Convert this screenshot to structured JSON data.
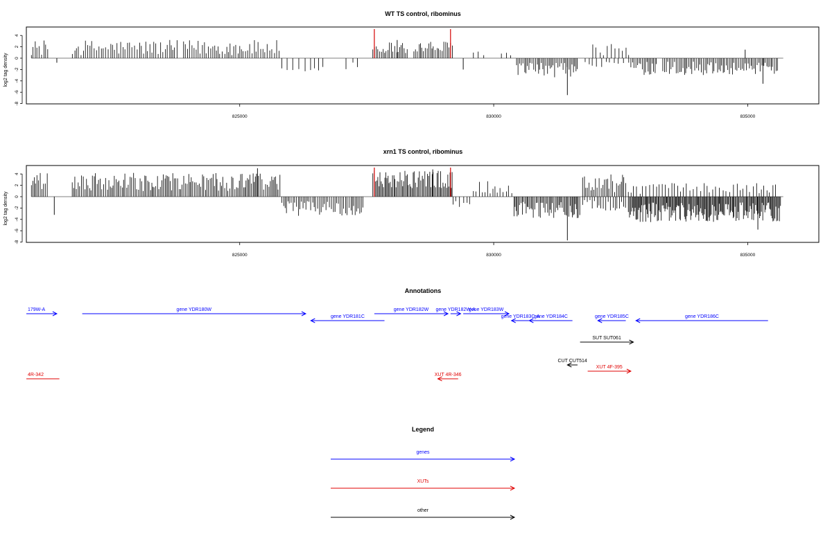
{
  "chart_data": [
    {
      "type": "bar",
      "title": "WT TS control, ribominus",
      "xlabel": "",
      "ylabel": "log2 tag density",
      "ylim": [
        -8,
        6
      ],
      "yticks": [
        "4",
        "2",
        "0",
        "-2",
        "-4",
        "-6",
        "-8"
      ],
      "xlim": [
        820800,
        836400
      ],
      "xticks": [
        "825000",
        "830000",
        "835000"
      ],
      "marker_color": "#d40000",
      "markers_x": [
        827650,
        829150
      ],
      "segments": [
        {
          "x0": 820900,
          "x1": 825800,
          "sign": 1,
          "minv": 0.5,
          "maxv": 3.2,
          "step": 42,
          "gaps": [
            [
              821250,
              821700
            ],
            [
              823800,
              823880
            ]
          ]
        },
        {
          "x0": 825830,
          "x1": 827400,
          "sign": -1,
          "minv": 0.5,
          "maxv": 2.4,
          "step": 110,
          "gaps": [
            [
              826700,
              827000
            ]
          ]
        },
        {
          "x0": 827620,
          "x1": 829200,
          "sign": 1,
          "minv": 0.8,
          "maxv": 3.0,
          "step": 32,
          "gaps": [
            [
              828300,
              828420
            ]
          ]
        },
        {
          "x0": 829600,
          "x1": 830400,
          "sign": 1,
          "minv": 0.5,
          "maxv": 1.5,
          "step": 90,
          "gaps": [
            [
              829850,
              830100
            ]
          ]
        },
        {
          "x0": 830450,
          "x1": 831650,
          "sign": -1,
          "minv": 0.8,
          "maxv": 3.5,
          "step": 28,
          "gaps": []
        },
        {
          "x0": 831950,
          "x1": 832700,
          "sign": 1,
          "minv": 0.4,
          "maxv": 2.5,
          "step": 70,
          "gaps": []
        },
        {
          "x0": 831800,
          "x1": 832700,
          "sign": -1,
          "minv": 0.5,
          "maxv": 1.8,
          "step": 80,
          "gaps": []
        },
        {
          "x0": 832700,
          "x1": 835600,
          "sign": -1,
          "minv": 0.6,
          "maxv": 3.0,
          "step": 30,
          "gaps": [
            [
              833200,
              833320
            ]
          ]
        }
      ],
      "spikes": [
        {
          "x": 821400,
          "v": -0.8
        },
        {
          "x": 829400,
          "v": -2.0
        },
        {
          "x": 831450,
          "v": -6.5
        },
        {
          "x": 835300,
          "v": -4.5
        },
        {
          "x": 834950,
          "v": 1.5
        },
        {
          "x": 828100,
          "v": 3.2
        }
      ]
    },
    {
      "type": "bar",
      "title": "xrn1 TS control, ribominus",
      "xlabel": "",
      "ylabel": "log2 tag density",
      "ylim": [
        -8,
        6
      ],
      "yticks": [
        "4",
        "2",
        "0",
        "-2",
        "-4",
        "-6",
        "-8"
      ],
      "xlim": [
        820800,
        836400
      ],
      "xticks": [
        "825000",
        "830000",
        "835000"
      ],
      "marker_color": "#d40000",
      "markers_x": [
        827650,
        829150
      ],
      "segments": [
        {
          "x0": 820900,
          "x1": 825800,
          "sign": 1,
          "minv": 1.0,
          "maxv": 4.2,
          "step": 30,
          "gaps": [
            [
              821250,
              821700
            ]
          ]
        },
        {
          "x0": 825830,
          "x1": 827450,
          "sign": -1,
          "minv": 0.8,
          "maxv": 3.6,
          "step": 34,
          "gaps": []
        },
        {
          "x0": 827620,
          "x1": 829200,
          "sign": 1,
          "minv": 1.5,
          "maxv": 4.6,
          "step": 24,
          "gaps": []
        },
        {
          "x0": 829200,
          "x1": 829600,
          "sign": -1,
          "minv": 0.5,
          "maxv": 1.8,
          "step": 70,
          "gaps": []
        },
        {
          "x0": 829600,
          "x1": 830400,
          "sign": 1,
          "minv": 0.5,
          "maxv": 3.0,
          "step": 55,
          "gaps": []
        },
        {
          "x0": 830400,
          "x1": 831700,
          "sign": -1,
          "minv": 0.8,
          "maxv": 3.8,
          "step": 24,
          "gaps": []
        },
        {
          "x0": 831750,
          "x1": 832600,
          "sign": 1,
          "minv": 0.8,
          "maxv": 4.0,
          "step": 32,
          "gaps": []
        },
        {
          "x0": 831750,
          "x1": 832600,
          "sign": -1,
          "minv": 0.6,
          "maxv": 2.5,
          "step": 45,
          "gaps": []
        },
        {
          "x0": 832650,
          "x1": 835650,
          "sign": -1,
          "minv": 1.0,
          "maxv": 4.5,
          "step": 18,
          "gaps": []
        },
        {
          "x0": 832650,
          "x1": 835600,
          "sign": 1,
          "minv": 0.5,
          "maxv": 2.4,
          "step": 60,
          "gaps": []
        }
      ],
      "spikes": [
        {
          "x": 821350,
          "v": -3.2
        },
        {
          "x": 825350,
          "v": 5.0
        },
        {
          "x": 831450,
          "v": -7.7
        },
        {
          "x": 835200,
          "v": -5.8
        },
        {
          "x": 828800,
          "v": 4.8
        }
      ]
    }
  ],
  "annotations": {
    "title": "Annotations",
    "xlim": [
      820800,
      836400
    ],
    "features": [
      {
        "label": "179W-A",
        "x0": 820800,
        "x1": 821400,
        "dir": "right",
        "row": 0,
        "color": "#0000ff"
      },
      {
        "label": "gene YDR180W",
        "x0": 821900,
        "x1": 826300,
        "dir": "right",
        "row": 0,
        "color": "#0000ff"
      },
      {
        "label": "gene YDR181C",
        "x0": 826400,
        "x1": 827850,
        "dir": "left",
        "row": 1,
        "color": "#0000ff"
      },
      {
        "label": "gene YDR182W",
        "x0": 827650,
        "x1": 829100,
        "dir": "right",
        "row": 0,
        "color": "#0000ff"
      },
      {
        "label": "gene YDR182W-A",
        "x0": 829150,
        "x1": 829350,
        "dir": "right",
        "row": 0,
        "color": "#0000ff"
      },
      {
        "label": "gene YDR183W",
        "x0": 829400,
        "x1": 830300,
        "dir": "right",
        "row": 0,
        "color": "#0000ff"
      },
      {
        "label": "gene YDR183C-A",
        "x0": 830350,
        "x1": 830700,
        "dir": "left",
        "row": 1,
        "color": "#0000ff"
      },
      {
        "label": "gene YDR184C",
        "x0": 830700,
        "x1": 831550,
        "dir": "left",
        "row": 1,
        "color": "#0000ff"
      },
      {
        "label": "gene YDR185C",
        "x0": 832050,
        "x1": 832600,
        "dir": "left",
        "row": 1,
        "color": "#0000ff"
      },
      {
        "label": "gene YDR186C",
        "x0": 832800,
        "x1": 835400,
        "dir": "left",
        "row": 1,
        "color": "#0000ff"
      },
      {
        "label": "SUT SUT061",
        "x0": 831700,
        "x1": 832750,
        "dir": "right",
        "row": 2,
        "color": "#000000"
      },
      {
        "label": "CUT CUT514",
        "x0": 831450,
        "x1": 831650,
        "dir": "left",
        "row": 3,
        "color": "#000000"
      },
      {
        "label": "XUT 4F-395",
        "x0": 831850,
        "x1": 832700,
        "dir": "right",
        "row": 4,
        "color": "#e00000"
      },
      {
        "label": "4R-342",
        "x0": 820800,
        "x1": 821450,
        "dir": "none",
        "row": 5,
        "color": "#e00000"
      },
      {
        "label": "XUT 4R-346",
        "x0": 828900,
        "x1": 829300,
        "dir": "left",
        "row": 5,
        "color": "#e00000"
      }
    ]
  },
  "legend": {
    "title": "Legend",
    "items": [
      {
        "label": "genes",
        "color": "#0000ff"
      },
      {
        "label": "XUTs",
        "color": "#e00000"
      },
      {
        "label": "other",
        "color": "#000000"
      }
    ]
  }
}
